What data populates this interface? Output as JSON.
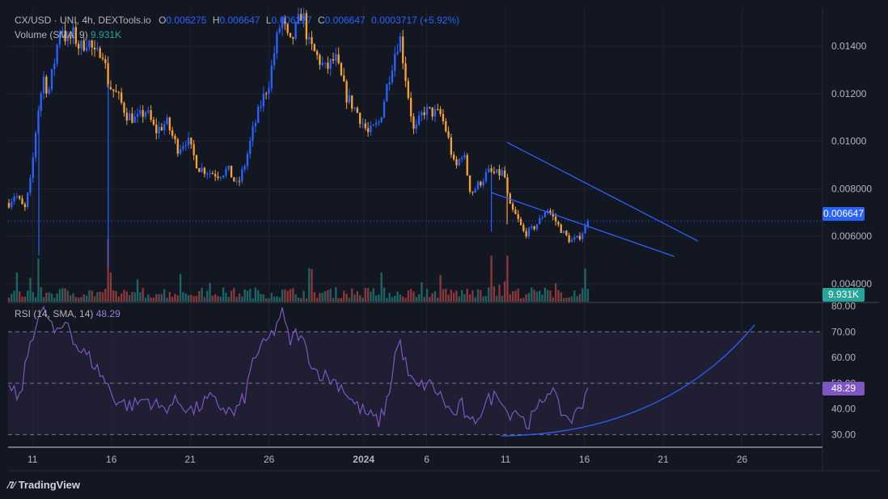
{
  "legend": {
    "symbol": "CX/USD · UNI, 4h, DEXTools.io",
    "o_label": "O",
    "o_value": "0.006275",
    "h_label": "H",
    "h_value": "0.006647",
    "l_label": "L",
    "l_value": "0.006227",
    "c_label": "C",
    "c_value": "0.006647",
    "change": "0.0003717 (+5.92%)",
    "volume_label": "Volume (SMA, 9)",
    "volume_value": "9.931K",
    "rsi_label": "RSI (14, SMA, 14)",
    "rsi_value": "48.29"
  },
  "price_badge": "0.006647",
  "volume_badge": "9.931K",
  "rsi_badge": "48.29",
  "branding": "TradingView",
  "colors": {
    "background": "#131722",
    "up_candle": "#2962ff",
    "down_candle": "#f7a330",
    "trendline": "#2962ff",
    "rsi_line": "#7e57c2",
    "rsi_band": "#2a2442",
    "vol_up": "#26a69a",
    "vol_down": "#ef5350",
    "rsi_badge": "#7e57c2",
    "vol_badge": "#26a69a",
    "price_badge": "#2962ff"
  },
  "chart_data": {
    "type": "candlestick",
    "timeframe": "4h",
    "price_axis": {
      "ticks": [
        "0.01400",
        "0.01200",
        "0.01000",
        "0.008000",
        "0.006000",
        "0.004000"
      ],
      "tick_values": [
        0.014,
        0.012,
        0.01,
        0.008,
        0.006,
        0.004
      ],
      "range": [
        0.00325,
        0.0156
      ]
    },
    "rsi_axis": {
      "ticks": [
        "80.00",
        "70.00",
        "60.00",
        "50.00",
        "40.00",
        "30.00"
      ],
      "tick_values": [
        80,
        70,
        60,
        50,
        40,
        30
      ],
      "range": [
        25.4,
        81.1
      ],
      "band": [
        30,
        70
      ],
      "midline": 50
    },
    "x_axis": {
      "labels": [
        "11",
        "16",
        "21",
        "26",
        "2024",
        "6",
        "11",
        "16",
        "21",
        "26"
      ],
      "label_days": [
        11,
        16,
        21,
        26,
        32,
        36,
        41,
        46,
        51,
        56
      ]
    },
    "day_range": [
      9.45,
      61.1
    ],
    "last_day": 46.3,
    "current_price": 0.006647,
    "price_anchors": [
      [
        9.5,
        0.0074
      ],
      [
        9.9,
        0.0078
      ],
      [
        10.5,
        0.0071
      ],
      [
        10.9,
        0.0084
      ],
      [
        11.3,
        0.0111
      ],
      [
        11.7,
        0.0127
      ],
      [
        12.0,
        0.012
      ],
      [
        12.4,
        0.0134
      ],
      [
        12.8,
        0.015
      ],
      [
        13.2,
        0.0141
      ],
      [
        13.6,
        0.0145
      ],
      [
        14.0,
        0.0139
      ],
      [
        14.5,
        0.0143
      ],
      [
        15.0,
        0.0135
      ],
      [
        15.4,
        0.014
      ],
      [
        15.8,
        0.0124
      ],
      [
        16.4,
        0.0119
      ],
      [
        17.0,
        0.0111
      ],
      [
        17.6,
        0.0109
      ],
      [
        18.2,
        0.0113
      ],
      [
        18.8,
        0.0104
      ],
      [
        19.5,
        0.0108
      ],
      [
        20.2,
        0.0097
      ],
      [
        20.8,
        0.0101
      ],
      [
        21.5,
        0.0089
      ],
      [
        22.2,
        0.0087
      ],
      [
        22.8,
        0.0086
      ],
      [
        23.4,
        0.0088
      ],
      [
        24.0,
        0.0081
      ],
      [
        24.5,
        0.0091
      ],
      [
        25.0,
        0.0105
      ],
      [
        25.5,
        0.0116
      ],
      [
        26.0,
        0.0125
      ],
      [
        26.4,
        0.014
      ],
      [
        26.8,
        0.0152
      ],
      [
        27.3,
        0.014
      ],
      [
        27.7,
        0.0147
      ],
      [
        28.1,
        0.0155
      ],
      [
        28.5,
        0.0141
      ],
      [
        29.0,
        0.0136
      ],
      [
        29.6,
        0.013
      ],
      [
        30.2,
        0.0135
      ],
      [
        30.9,
        0.0119
      ],
      [
        31.6,
        0.0112
      ],
      [
        32.3,
        0.0103
      ],
      [
        33.0,
        0.0108
      ],
      [
        33.5,
        0.0124
      ],
      [
        34.0,
        0.0138
      ],
      [
        34.3,
        0.0144
      ],
      [
        34.7,
        0.0125
      ],
      [
        35.2,
        0.0103
      ],
      [
        35.8,
        0.0113
      ],
      [
        36.4,
        0.0112
      ],
      [
        36.9,
        0.0111
      ],
      [
        37.3,
        0.0103
      ],
      [
        37.8,
        0.0088
      ],
      [
        38.3,
        0.0096
      ],
      [
        38.8,
        0.0078
      ],
      [
        39.3,
        0.0082
      ],
      [
        39.9,
        0.0087
      ],
      [
        40.4,
        0.0086
      ],
      [
        40.9,
        0.0087
      ],
      [
        41.2,
        0.0073
      ],
      [
        41.7,
        0.0068
      ],
      [
        42.2,
        0.0061
      ],
      [
        42.7,
        0.0063
      ],
      [
        43.2,
        0.0067
      ],
      [
        43.6,
        0.0072
      ],
      [
        44.1,
        0.0067
      ],
      [
        44.6,
        0.0062
      ],
      [
        45.1,
        0.0058
      ],
      [
        45.6,
        0.0059
      ],
      [
        46.0,
        0.0063
      ],
      [
        46.3,
        0.006647
      ]
    ],
    "rsi_anchors": [
      [
        9.5,
        48
      ],
      [
        10.2,
        44
      ],
      [
        10.8,
        65
      ],
      [
        11.3,
        75
      ],
      [
        11.8,
        78
      ],
      [
        12.5,
        68
      ],
      [
        13.2,
        75
      ],
      [
        13.8,
        64
      ],
      [
        14.6,
        60
      ],
      [
        15.5,
        52
      ],
      [
        16.2,
        44
      ],
      [
        17.2,
        41
      ],
      [
        18.2,
        44
      ],
      [
        19.2,
        40
      ],
      [
        20.2,
        43
      ],
      [
        21.2,
        39
      ],
      [
        22.2,
        44
      ],
      [
        23.2,
        40
      ],
      [
        23.8,
        38
      ],
      [
        24.5,
        45
      ],
      [
        25.0,
        60
      ],
      [
        25.6,
        64
      ],
      [
        26.3,
        70
      ],
      [
        26.8,
        78
      ],
      [
        27.3,
        66
      ],
      [
        27.8,
        70
      ],
      [
        28.3,
        64
      ],
      [
        28.9,
        55
      ],
      [
        29.8,
        52
      ],
      [
        30.6,
        49
      ],
      [
        31.4,
        42
      ],
      [
        32.2,
        38
      ],
      [
        33.0,
        35
      ],
      [
        33.6,
        45
      ],
      [
        34.0,
        62
      ],
      [
        34.3,
        66
      ],
      [
        34.9,
        52
      ],
      [
        35.4,
        48
      ],
      [
        36.0,
        50
      ],
      [
        36.5,
        48
      ],
      [
        37.1,
        43
      ],
      [
        37.7,
        37
      ],
      [
        38.2,
        42
      ],
      [
        38.7,
        33
      ],
      [
        39.3,
        38
      ],
      [
        40.0,
        44
      ],
      [
        40.7,
        46
      ],
      [
        41.1,
        38
      ],
      [
        41.7,
        40
      ],
      [
        42.3,
        34
      ],
      [
        42.9,
        38
      ],
      [
        43.4,
        44
      ],
      [
        43.9,
        49
      ],
      [
        44.3,
        41
      ],
      [
        44.8,
        37
      ],
      [
        45.3,
        36
      ],
      [
        45.8,
        42
      ],
      [
        46.3,
        48.29
      ]
    ],
    "volume_spikes": [
      [
        11.4,
        0.0052
      ],
      [
        15.8,
        0.0047
      ],
      [
        40.1,
        0.0062
      ],
      [
        41.1,
        0.0065
      ]
    ],
    "trendlines": [
      {
        "name": "upper",
        "from": [
          41.1,
          0.00995
        ],
        "to": [
          53.2,
          0.0058
        ],
        "panel": "price"
      },
      {
        "name": "lower",
        "from": [
          40.1,
          0.00784
        ],
        "to": [
          51.7,
          0.00515
        ],
        "panel": "price"
      }
    ],
    "rsi_curve": {
      "from": [
        40.7,
        29.5
      ],
      "control": [
        51.0,
        30.2
      ],
      "to": [
        56.8,
        72.7
      ]
    },
    "series": [
      {
        "name": "Volume (SMA, 9)"
      },
      {
        "name": "RSI (14, SMA, 14)"
      }
    ]
  }
}
